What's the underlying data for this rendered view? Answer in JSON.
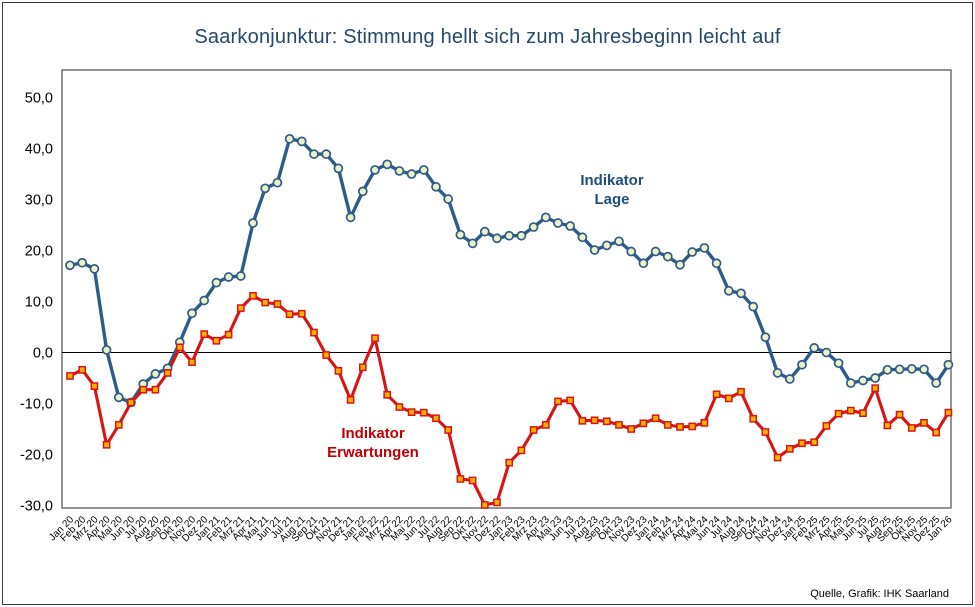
{
  "title": "Saarkonjunktur: Stimmung hellt sich zum Jahresbeginn leicht auf",
  "title_color": "#24486B",
  "source": "Quelle, Grafik: IHK Saarland",
  "chart_data": {
    "type": "line",
    "title": "Saarkonjunktur: Stimmung hellt sich zum Jahresbeginn leicht auf",
    "xlabel": "",
    "ylabel": "",
    "ylim": [
      -30.5,
      55.4
    ],
    "grid": "none, zero baseline only",
    "legend": "inline text annotations near each line",
    "y_ticks": [
      {
        "value": 50,
        "label": "50,0"
      },
      {
        "value": 40,
        "label": "40,0"
      },
      {
        "value": 30,
        "label": "30,0"
      },
      {
        "value": 20,
        "label": "20,0"
      },
      {
        "value": 10,
        "label": "10,0"
      },
      {
        "value": 0,
        "label": "0,0"
      },
      {
        "value": -10,
        "label": "-10,0"
      },
      {
        "value": -20,
        "label": "-20,0"
      },
      {
        "value": -30,
        "label": "-30,0"
      }
    ],
    "categories": [
      "Jan 20",
      "Feb 20",
      "Mrz 20",
      "Apr 20",
      "Mai 20",
      "Jun 20",
      "Jul 20",
      "Aug 20",
      "Sep 20",
      "Okt 20",
      "Nov 20",
      "Dez 20",
      "Jan 21",
      "Feb 21",
      "Mrz 21",
      "Apr 21",
      "Mai 21",
      "Jun 21",
      "Jul 21",
      "Aug 21",
      "Sep 21",
      "Okt 21",
      "Nov 21",
      "Dez 21",
      "Jan 22",
      "Feb 22",
      "Mrz 22",
      "Apr 22",
      "Mai 22",
      "Jun 22",
      "Jul 22",
      "Aug 22",
      "Sep 22",
      "Okt 22",
      "Nov 22",
      "Dez 22",
      "Jan 23",
      "Feb 23",
      "Mrz 23",
      "Apr 23",
      "Mai 23",
      "Jun 23",
      "Jul 23",
      "Aug 23",
      "Sep 23",
      "Okt 23",
      "Nov 23",
      "Dez 23",
      "Jan 24",
      "Feb 24",
      "Mrz 24",
      "Apr 24",
      "Mai 24",
      "Jun 24",
      "Jul 24",
      "Aug 24",
      "Sep 24",
      "Okt 24",
      "Nov 24",
      "Dez 24",
      "Jan 25",
      "Feb 25",
      "Mrz 25",
      "Apr 25",
      "Mai 25",
      "Jun 25",
      "Jul 25",
      "Aug 25",
      "Sep 25",
      "Okt 25",
      "Nov 25",
      "Dez 25",
      "Jan 26"
    ],
    "series": [
      {
        "name": "Indikator Lage",
        "color": "#2E5C8A",
        "marker": "circle",
        "marker_fill": "#EFF2C7",
        "values": [
          17.1,
          17.6,
          16.4,
          0.5,
          -8.8,
          -9.8,
          -6.2,
          -4.2,
          -3.1,
          2.0,
          7.7,
          10.2,
          13.7,
          14.8,
          15.0,
          25.4,
          32.2,
          33.3,
          41.9,
          41.4,
          38.9,
          38.9,
          36.1,
          26.5,
          31.6,
          35.8,
          36.9,
          35.6,
          35.0,
          35.8,
          32.5,
          30.1,
          23.1,
          21.4,
          23.7,
          22.4,
          22.9,
          22.9,
          24.6,
          26.5,
          25.4,
          24.8,
          22.6,
          20.1,
          21.0,
          21.8,
          19.8,
          17.5,
          19.8,
          18.8,
          17.2,
          19.7,
          20.5,
          17.5,
          12.1,
          11.6,
          9.0,
          3.0,
          -4.0,
          -5.2,
          -2.4,
          0.9,
          0.0,
          -2.1,
          -6.0,
          -5.5,
          -5.0,
          -3.4,
          -3.3,
          -3.2,
          -3.3,
          -6.0,
          -2.4
        ]
      },
      {
        "name": "Indikator Erwartungen",
        "color": "#D91414",
        "marker": "square",
        "marker_fill": "#FFB300",
        "values": [
          -4.6,
          -3.4,
          -6.6,
          -18.1,
          -14.2,
          -9.8,
          -7.3,
          -7.3,
          -4.0,
          1.0,
          -1.9,
          3.6,
          2.3,
          3.5,
          8.7,
          11.1,
          9.8,
          9.5,
          7.5,
          7.6,
          3.9,
          -0.5,
          -3.6,
          -9.3,
          -2.9,
          2.8,
          -8.3,
          -10.7,
          -11.7,
          -11.8,
          -12.9,
          -15.2,
          -24.8,
          -25.1,
          -29.9,
          -29.4,
          -21.6,
          -19.2,
          -15.2,
          -14.2,
          -9.6,
          -9.4,
          -13.4,
          -13.3,
          -13.5,
          -14.2,
          -15.0,
          -13.9,
          -12.9,
          -14.2,
          -14.6,
          -14.5,
          -13.8,
          -8.2,
          -9.0,
          -7.7,
          -13.0,
          -15.6,
          -20.6,
          -18.9,
          -17.8,
          -17.6,
          -14.4,
          -12.0,
          -11.4,
          -11.9,
          -7.0,
          -14.3,
          -12.2,
          -14.8,
          -13.8,
          -15.7,
          -11.8
        ]
      }
    ],
    "series_labels": {
      "lage": {
        "line1": "Indikator",
        "line2": "Lage",
        "color": "#1F4E79"
      },
      "erwartungen": {
        "line1": "Indikator",
        "line2": "Erwartungen",
        "color": "#C00000"
      }
    }
  }
}
